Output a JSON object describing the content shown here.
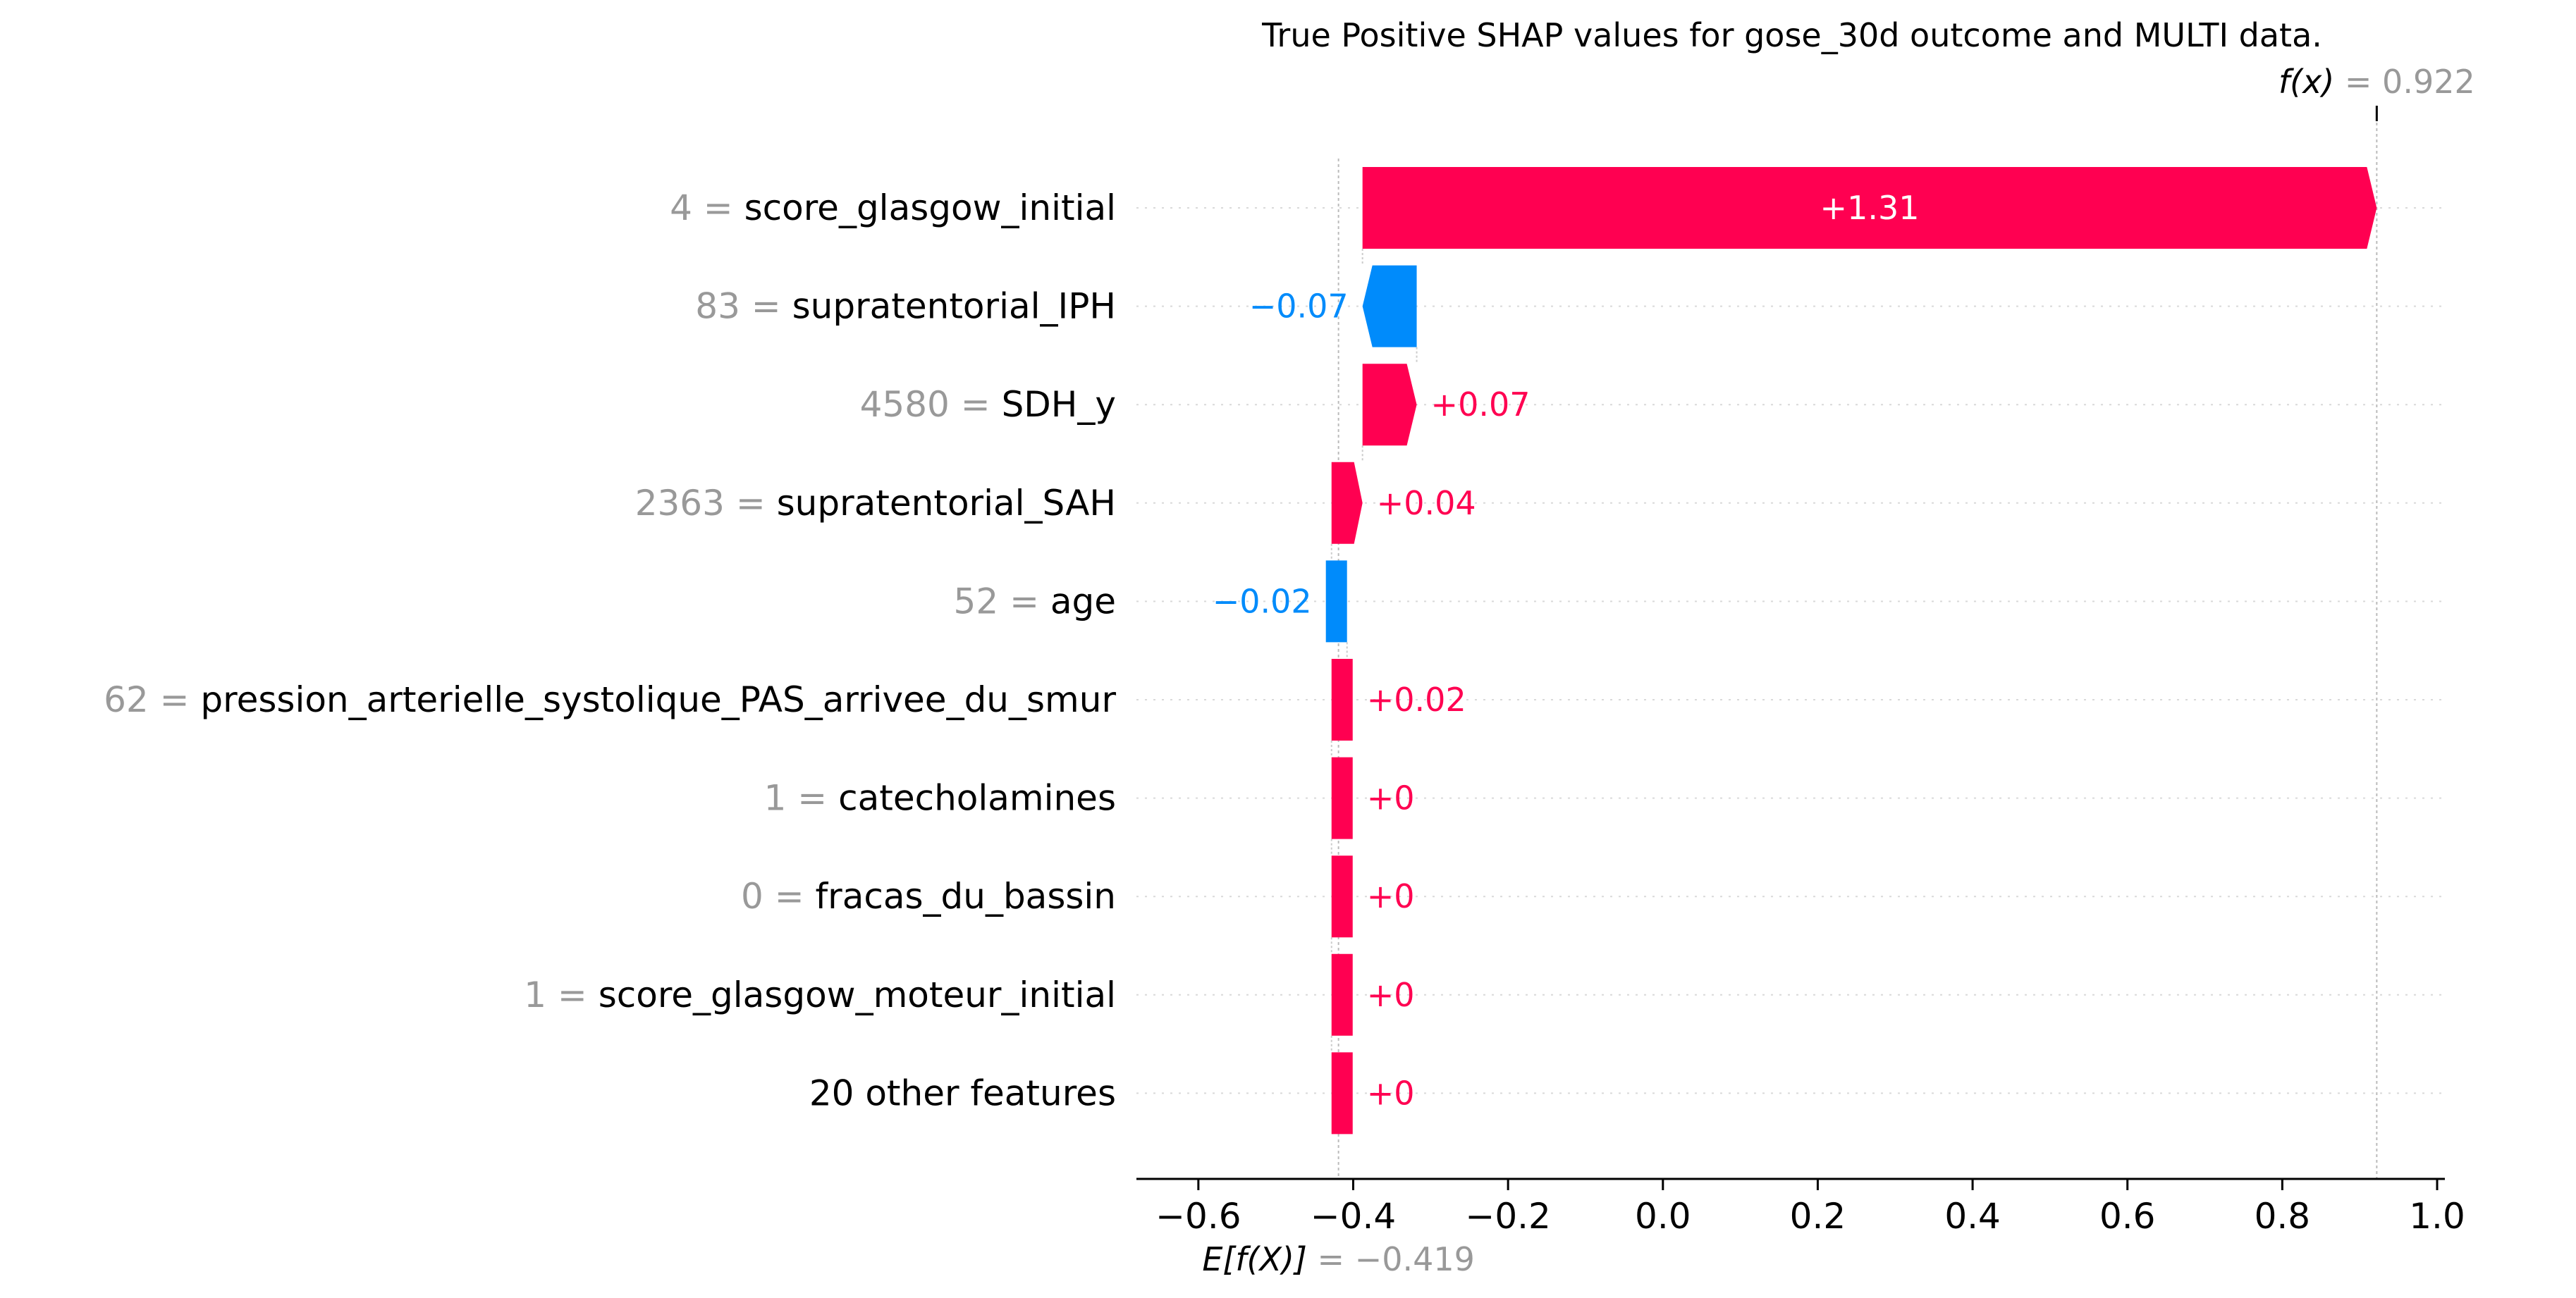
{
  "chart_data": {
    "type": "waterfall",
    "title": "True Positive SHAP values for gose_30d outcome and MULTI data.",
    "xlim": [
      -0.68,
      1.01
    ],
    "x_ticks": [
      -0.6,
      -0.4,
      -0.2,
      0.0,
      0.2,
      0.4,
      0.6,
      0.8,
      1.0
    ],
    "x_tick_labels": [
      "−0.6",
      "−0.4",
      "−0.2",
      "0.0",
      "0.2",
      "0.4",
      "0.6",
      "0.8",
      "1.0"
    ],
    "grid": "horizontal dotted guide lines per feature",
    "base_value": -0.419,
    "base_label": {
      "name": "E[f(X)]",
      "equals": "=",
      "value_text": "−0.419"
    },
    "output_value": 0.922,
    "output_label": {
      "name": "f(x)",
      "equals": "=",
      "value_text": "0.922"
    },
    "features": [
      {
        "value": "4",
        "name": "score_glasgow_initial",
        "shap": 1.31,
        "label": "+1.31",
        "label_inside": true
      },
      {
        "value": "83",
        "name": "supratentorial_IPH",
        "shap": -0.07,
        "label": "−0.07",
        "label_inside": false
      },
      {
        "value": "4580",
        "name": "SDH_y",
        "shap": 0.07,
        "label": "+0.07",
        "label_inside": false
      },
      {
        "value": "2363",
        "name": "supratentorial_SAH",
        "shap": 0.04,
        "label": "+0.04",
        "label_inside": false
      },
      {
        "value": "52",
        "name": "age",
        "shap": -0.02,
        "label": "−0.02",
        "label_inside": false
      },
      {
        "value": "62",
        "name": "pression_arterielle_systolique_PAS_arrivee_du_smur",
        "shap": 0.02,
        "label": "+0.02",
        "label_inside": false
      },
      {
        "value": "1",
        "name": "catecholamines",
        "shap": 0.0,
        "label": "+0",
        "label_inside": false
      },
      {
        "value": "0",
        "name": "fracas_du_bassin",
        "shap": 0.0,
        "label": "+0",
        "label_inside": false
      },
      {
        "value": "1",
        "name": "score_glasgow_moteur_initial",
        "shap": 0.0,
        "label": "+0",
        "label_inside": false
      },
      {
        "value": "",
        "name": "20 other features",
        "shap": 0.0,
        "label": "+0",
        "label_inside": false
      }
    ],
    "colors": {
      "positive": "#ff0051",
      "negative": "#008bfb",
      "feature_value_text": "#999999",
      "feature_name_text": "#000000",
      "axis": "#000000",
      "guide": "#cccccc"
    }
  }
}
